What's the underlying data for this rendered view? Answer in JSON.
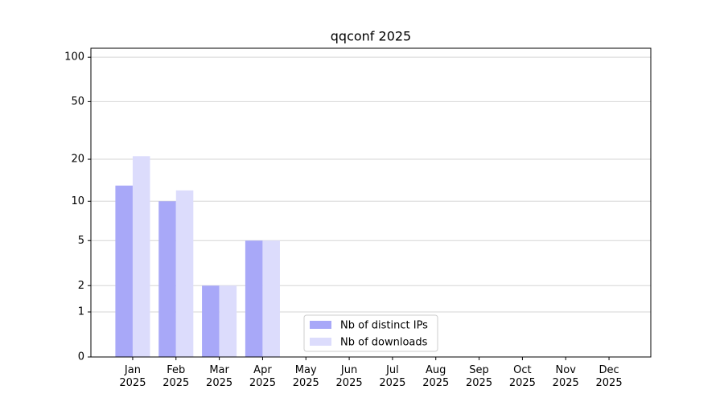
{
  "chart_data": {
    "type": "bar",
    "title": "qqconf 2025",
    "categories": [
      "Jan\n2025",
      "Feb\n2025",
      "Mar\n2025",
      "Apr\n2025",
      "May\n2025",
      "Jun\n2025",
      "Jul\n2025",
      "Aug\n2025",
      "Sep\n2025",
      "Oct\n2025",
      "Nov\n2025",
      "Dec\n2025"
    ],
    "series": [
      {
        "name": "Nb of distinct IPs",
        "color": "#a8a8f8",
        "values": [
          13,
          10,
          2,
          5,
          0,
          0,
          0,
          0,
          0,
          0,
          0,
          0
        ]
      },
      {
        "name": "Nb of downloads",
        "color": "#dcdcfc",
        "values": [
          21,
          12,
          2,
          5,
          0,
          0,
          0,
          0,
          0,
          0,
          0,
          0
        ]
      }
    ],
    "yscale": "log1p",
    "ylim": [
      0,
      115
    ],
    "yticks": [
      0,
      1,
      2,
      5,
      10,
      20,
      50,
      100
    ],
    "grid": true,
    "legend": "lower center"
  }
}
